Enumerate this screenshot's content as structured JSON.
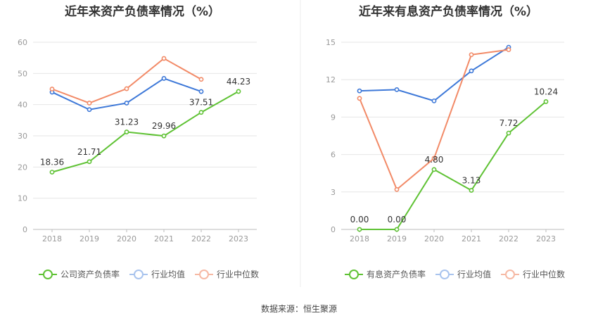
{
  "source_label": "数据来源：恒生聚源",
  "colors": {
    "company": "#5fc234",
    "avg": "#3d78d8",
    "median": "#f28a67",
    "grid": "#e6e6e6",
    "axis": "#999999"
  },
  "chart_data": [
    {
      "type": "line",
      "title": "近年来资产负债率情况（%）",
      "x": [
        "2018",
        "2019",
        "2020",
        "2021",
        "2022",
        "2023"
      ],
      "ylim": [
        0,
        60
      ],
      "yticks": [
        0,
        10,
        20,
        30,
        40,
        50,
        60
      ],
      "grid": true,
      "legend_position": "bottom",
      "series": [
        {
          "name": "公司资产负债率",
          "key": "company",
          "values": [
            18.36,
            21.71,
            31.23,
            29.96,
            37.51,
            44.23
          ],
          "labels": [
            "18.36",
            "21.71",
            "31.23",
            "29.96",
            "37.51",
            "44.23"
          ]
        },
        {
          "name": "行业均值",
          "key": "avg",
          "values": [
            44.0,
            38.4,
            40.5,
            48.4,
            44.2,
            null
          ]
        },
        {
          "name": "行业中位数",
          "key": "median",
          "values": [
            45.0,
            40.5,
            45.1,
            54.8,
            48.1,
            null
          ]
        }
      ]
    },
    {
      "type": "line",
      "title": "近年来有息资产负债率情况（%）",
      "x": [
        "2018",
        "2019",
        "2020",
        "2021",
        "2022",
        "2023"
      ],
      "ylim": [
        0,
        15
      ],
      "yticks": [
        0,
        3,
        6,
        9,
        12,
        15
      ],
      "grid": true,
      "legend_position": "bottom",
      "series": [
        {
          "name": "有息资产负债率",
          "key": "company",
          "values": [
            0.0,
            0.0,
            4.8,
            3.13,
            7.72,
            10.24
          ],
          "labels": [
            "0.00",
            "0.00",
            "4.80",
            "3.13",
            "7.72",
            "10.24"
          ]
        },
        {
          "name": "行业均值",
          "key": "avg",
          "values": [
            11.1,
            11.2,
            10.3,
            12.7,
            14.6,
            null
          ]
        },
        {
          "name": "行业中位数",
          "key": "median",
          "values": [
            10.5,
            3.2,
            5.7,
            14.0,
            14.4,
            null
          ]
        }
      ]
    }
  ]
}
